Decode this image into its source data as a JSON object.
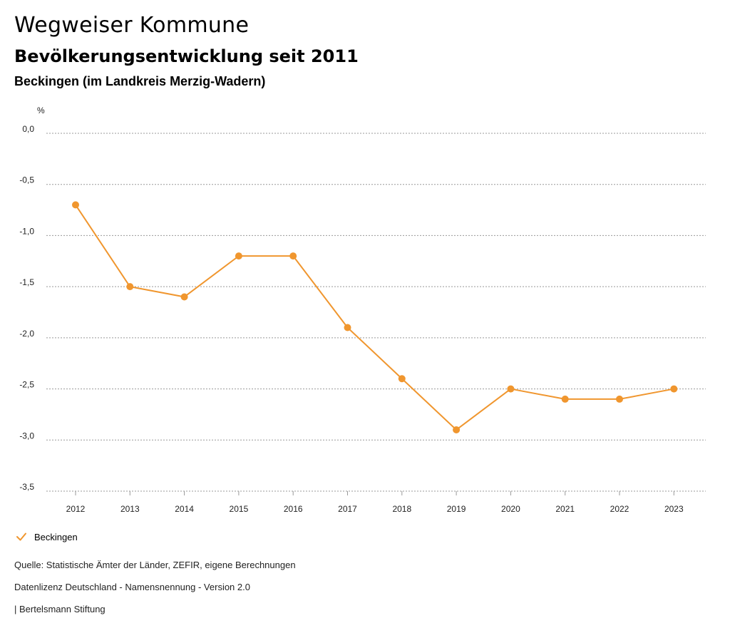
{
  "header": {
    "title": "Wegweiser Kommune",
    "subtitle": "Bevölkerungsentwicklung seit 2011",
    "region": "Beckingen (im Landkreis Merzig-Wadern)"
  },
  "chart_data": {
    "type": "line",
    "y_unit": "%",
    "x": [
      "2012",
      "2013",
      "2014",
      "2015",
      "2016",
      "2017",
      "2018",
      "2019",
      "2020",
      "2021",
      "2022",
      "2023"
    ],
    "series": [
      {
        "name": "Beckingen",
        "color": "#f0962e",
        "values": [
          -0.7,
          -1.5,
          -1.6,
          -1.2,
          -1.2,
          -1.9,
          -2.4,
          -2.9,
          -2.5,
          -2.6,
          -2.6,
          -2.5
        ]
      }
    ],
    "ylim": [
      -3.5,
      0.0
    ],
    "yticks": [
      "0,0",
      "-0,5",
      "-1,0",
      "-1,5",
      "-2,0",
      "-2,5",
      "-3,0",
      "-3,5"
    ],
    "grid": true,
    "legend_position": "bottom-left"
  },
  "legend": {
    "label": "Beckingen",
    "icon": "checkmark-icon"
  },
  "footer": {
    "source": "Quelle: Statistische Ämter der Länder, ZEFIR, eigene Berechnungen",
    "license": "Datenlizenz Deutschland - Namensnennung - Version 2.0",
    "publisher": "| Bertelsmann Stiftung"
  }
}
